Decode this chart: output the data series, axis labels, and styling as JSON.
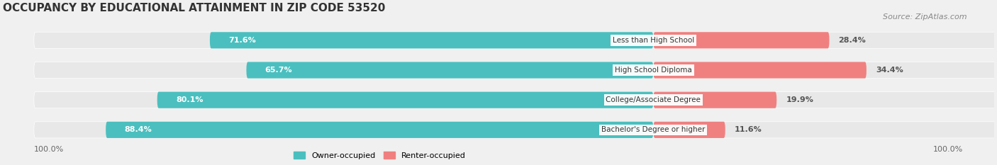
{
  "title": "OCCUPANCY BY EDUCATIONAL ATTAINMENT IN ZIP CODE 53520",
  "source": "Source: ZipAtlas.com",
  "categories": [
    "Less than High School",
    "High School Diploma",
    "College/Associate Degree",
    "Bachelor's Degree or higher"
  ],
  "owner_pct": [
    71.6,
    65.7,
    80.1,
    88.4
  ],
  "renter_pct": [
    28.4,
    34.4,
    19.9,
    11.6
  ],
  "owner_color": "#4BBFBF",
  "renter_color": "#F08080",
  "bg_color": "#f0f0f0",
  "bar_bg_color": "#e8e8e8",
  "title_fontsize": 11,
  "source_fontsize": 8,
  "label_fontsize": 8,
  "tick_label_fontsize": 8,
  "axis_label_left": "100.0%",
  "axis_label_right": "100.0%"
}
